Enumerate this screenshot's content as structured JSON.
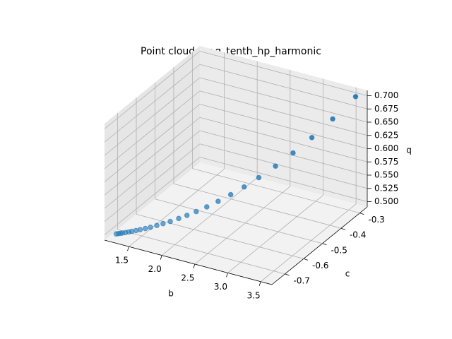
{
  "chart_data": {
    "type": "scatter3d",
    "title": "Point cloud for g_tenth_hp_harmonic",
    "xlabel": "b",
    "ylabel": "c",
    "zlabel": "q",
    "color": "#1f77b4",
    "grid": true,
    "x": [
      1.25,
      1.27,
      1.29,
      1.31,
      1.34,
      1.37,
      1.4,
      1.44,
      1.48,
      1.53,
      1.58,
      1.64,
      1.7,
      1.77,
      1.85,
      1.93,
      2.02,
      2.12,
      2.23,
      2.35,
      2.48,
      2.62,
      2.78,
      2.95,
      3.13,
      3.33,
      3.55
    ],
    "y": [
      -0.75,
      -0.746,
      -0.742,
      -0.738,
      -0.732,
      -0.725,
      -0.719,
      -0.711,
      -0.703,
      -0.693,
      -0.683,
      -0.67,
      -0.658,
      -0.644,
      -0.627,
      -0.611,
      -0.593,
      -0.572,
      -0.55,
      -0.525,
      -0.499,
      -0.47,
      -0.437,
      -0.403,
      -0.366,
      -0.325,
      -0.28
    ],
    "z": [
      0.5,
      0.5,
      0.5001,
      0.5001,
      0.5003,
      0.5005,
      0.5009,
      0.5014,
      0.502,
      0.503,
      0.5041,
      0.5058,
      0.5077,
      0.5102,
      0.5136,
      0.5175,
      0.5224,
      0.5286,
      0.5363,
      0.5458,
      0.5572,
      0.571,
      0.5885,
      0.6093,
      0.6336,
      0.6636,
      0.7
    ],
    "xlim": [
      1.13,
      3.67
    ],
    "ylim": [
      -0.77,
      -0.26
    ],
    "zlim": [
      0.49,
      0.71
    ],
    "xticks": [
      1.5,
      {
        "value": 2,
        "label": "2.0"
      },
      2.5,
      {
        "value": 3,
        "label": "3.0"
      },
      3.5
    ],
    "yticks": [
      -0.7,
      -0.6,
      -0.5,
      -0.4,
      -0.3
    ],
    "zticks": [
      {
        "value": 0.5,
        "label": "0.500"
      },
      {
        "value": 0.525,
        "label": "0.525"
      },
      {
        "value": 0.55,
        "label": "0.550"
      },
      {
        "value": 0.575,
        "label": "0.575"
      },
      {
        "value": 0.6,
        "label": "0.600"
      },
      {
        "value": 0.625,
        "label": "0.625"
      },
      {
        "value": 0.65,
        "label": "0.650"
      },
      {
        "value": 0.675,
        "label": "0.675"
      },
      {
        "value": 0.7,
        "label": "0.700"
      }
    ]
  }
}
